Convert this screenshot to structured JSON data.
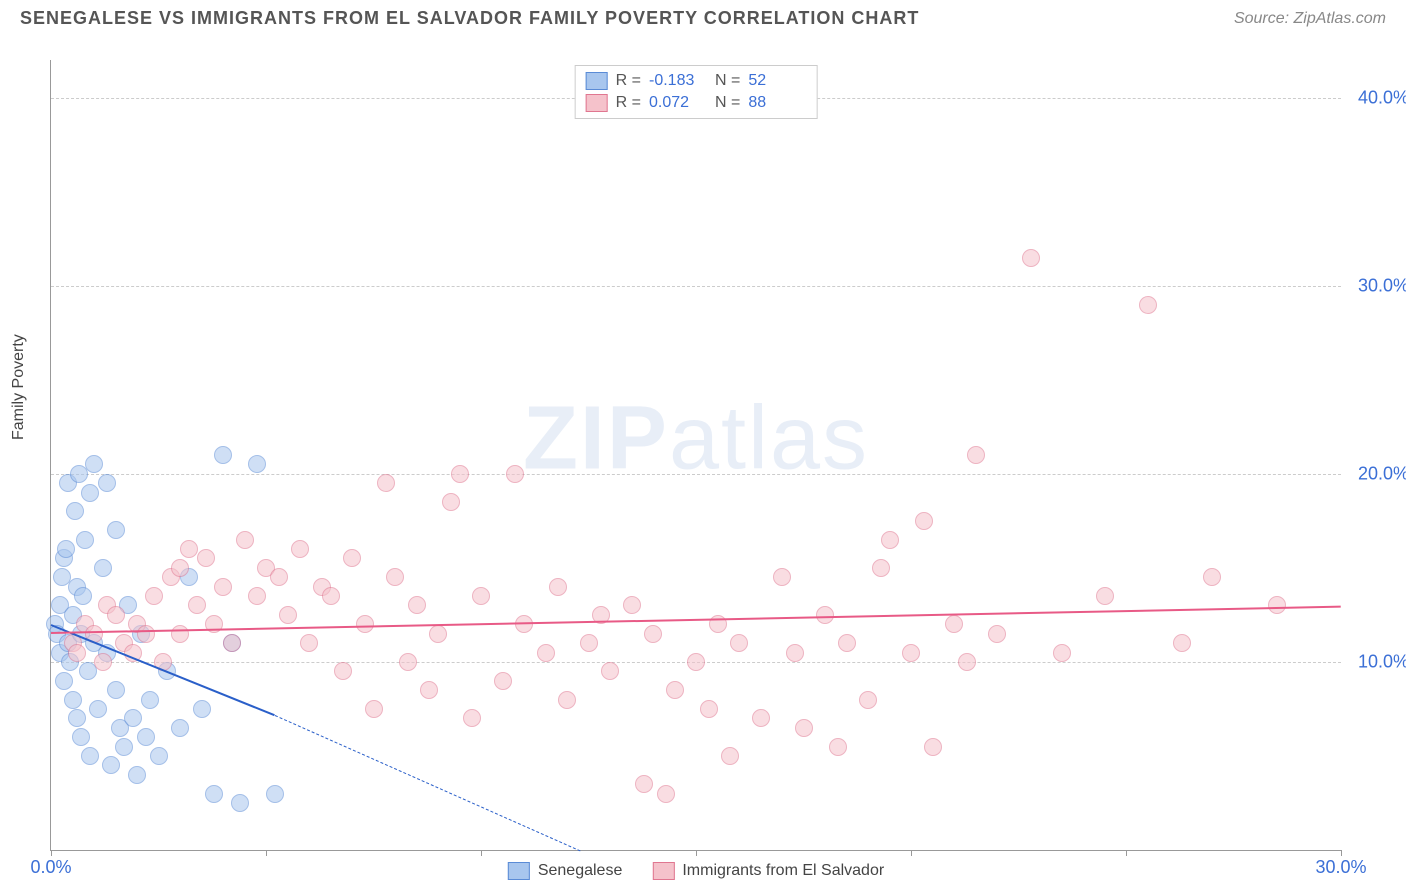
{
  "header": {
    "title": "SENEGALESE VS IMMIGRANTS FROM EL SALVADOR FAMILY POVERTY CORRELATION CHART",
    "source": "Source: ZipAtlas.com"
  },
  "watermark": {
    "bold": "ZIP",
    "light": "atlas"
  },
  "chart": {
    "type": "scatter",
    "ylabel": "Family Poverty",
    "xlim": [
      0,
      30
    ],
    "ylim": [
      0,
      42
    ],
    "xticks": [
      {
        "v": 0,
        "label": "0.0%"
      },
      {
        "v": 5,
        "label": ""
      },
      {
        "v": 10,
        "label": ""
      },
      {
        "v": 15,
        "label": ""
      },
      {
        "v": 20,
        "label": ""
      },
      {
        "v": 25,
        "label": ""
      },
      {
        "v": 30,
        "label": "30.0%"
      }
    ],
    "yticks": [
      {
        "v": 10,
        "label": "10.0%"
      },
      {
        "v": 20,
        "label": "20.0%"
      },
      {
        "v": 30,
        "label": "30.0%"
      },
      {
        "v": 40,
        "label": "40.0%"
      }
    ],
    "grid_color": "#cccccc",
    "background": "#ffffff",
    "point_radius": 8,
    "point_opacity": 0.55,
    "series": [
      {
        "key": "senegalese",
        "label": "Senegalese",
        "fill": "#a8c6ee",
        "stroke": "#5a8bd6",
        "R": "-0.183",
        "N": "52",
        "trend": {
          "x0": 0,
          "y0": 12.0,
          "x1": 5.2,
          "y1": 7.2,
          "color": "#2a5fc9",
          "width": 2,
          "dash_ext": {
            "x1": 12.3,
            "y1": 0
          }
        },
        "points": [
          [
            0.1,
            12.0
          ],
          [
            0.15,
            11.5
          ],
          [
            0.2,
            13.0
          ],
          [
            0.2,
            10.5
          ],
          [
            0.25,
            14.5
          ],
          [
            0.3,
            15.5
          ],
          [
            0.3,
            9.0
          ],
          [
            0.35,
            16.0
          ],
          [
            0.4,
            11.0
          ],
          [
            0.4,
            19.5
          ],
          [
            0.45,
            10.0
          ],
          [
            0.5,
            12.5
          ],
          [
            0.5,
            8.0
          ],
          [
            0.55,
            18.0
          ],
          [
            0.6,
            14.0
          ],
          [
            0.6,
            7.0
          ],
          [
            0.65,
            20.0
          ],
          [
            0.7,
            11.5
          ],
          [
            0.7,
            6.0
          ],
          [
            0.75,
            13.5
          ],
          [
            0.8,
            16.5
          ],
          [
            0.85,
            9.5
          ],
          [
            0.9,
            19.0
          ],
          [
            0.9,
            5.0
          ],
          [
            1.0,
            20.5
          ],
          [
            1.0,
            11.0
          ],
          [
            1.1,
            7.5
          ],
          [
            1.2,
            15.0
          ],
          [
            1.3,
            10.5
          ],
          [
            1.3,
            19.5
          ],
          [
            1.4,
            4.5
          ],
          [
            1.5,
            8.5
          ],
          [
            1.5,
            17.0
          ],
          [
            1.6,
            6.5
          ],
          [
            1.7,
            5.5
          ],
          [
            1.8,
            13.0
          ],
          [
            1.9,
            7.0
          ],
          [
            2.0,
            4.0
          ],
          [
            2.1,
            11.5
          ],
          [
            2.2,
            6.0
          ],
          [
            2.3,
            8.0
          ],
          [
            2.5,
            5.0
          ],
          [
            2.7,
            9.5
          ],
          [
            3.0,
            6.5
          ],
          [
            3.2,
            14.5
          ],
          [
            3.5,
            7.5
          ],
          [
            3.8,
            3.0
          ],
          [
            4.0,
            21.0
          ],
          [
            4.2,
            11.0
          ],
          [
            4.4,
            2.5
          ],
          [
            4.8,
            20.5
          ],
          [
            5.2,
            3.0
          ]
        ]
      },
      {
        "key": "el_salvador",
        "label": "Immigrants from El Salvador",
        "fill": "#f5c2cb",
        "stroke": "#e07690",
        "R": "0.072",
        "N": "88",
        "trend": {
          "x0": 0,
          "y0": 11.6,
          "x1": 30,
          "y1": 13.0,
          "color": "#e85a86",
          "width": 2
        },
        "points": [
          [
            0.5,
            11.0
          ],
          [
            0.6,
            10.5
          ],
          [
            0.8,
            12.0
          ],
          [
            1.0,
            11.5
          ],
          [
            1.2,
            10.0
          ],
          [
            1.3,
            13.0
          ],
          [
            1.5,
            12.5
          ],
          [
            1.7,
            11.0
          ],
          [
            1.9,
            10.5
          ],
          [
            2.0,
            12.0
          ],
          [
            2.2,
            11.5
          ],
          [
            2.4,
            13.5
          ],
          [
            2.6,
            10.0
          ],
          [
            2.8,
            14.5
          ],
          [
            3.0,
            15.0
          ],
          [
            3.0,
            11.5
          ],
          [
            3.2,
            16.0
          ],
          [
            3.4,
            13.0
          ],
          [
            3.6,
            15.5
          ],
          [
            3.8,
            12.0
          ],
          [
            4.0,
            14.0
          ],
          [
            4.2,
            11.0
          ],
          [
            4.5,
            16.5
          ],
          [
            4.8,
            13.5
          ],
          [
            5.0,
            15.0
          ],
          [
            5.3,
            14.5
          ],
          [
            5.5,
            12.5
          ],
          [
            5.8,
            16.0
          ],
          [
            6.0,
            11.0
          ],
          [
            6.3,
            14.0
          ],
          [
            6.5,
            13.5
          ],
          [
            6.8,
            9.5
          ],
          [
            7.0,
            15.5
          ],
          [
            7.3,
            12.0
          ],
          [
            7.5,
            7.5
          ],
          [
            7.8,
            19.5
          ],
          [
            8.0,
            14.5
          ],
          [
            8.3,
            10.0
          ],
          [
            8.5,
            13.0
          ],
          [
            8.8,
            8.5
          ],
          [
            9.0,
            11.5
          ],
          [
            9.3,
            18.5
          ],
          [
            9.5,
            20.0
          ],
          [
            9.8,
            7.0
          ],
          [
            10.0,
            13.5
          ],
          [
            10.5,
            9.0
          ],
          [
            10.8,
            20.0
          ],
          [
            11.0,
            12.0
          ],
          [
            11.5,
            10.5
          ],
          [
            11.8,
            14.0
          ],
          [
            12.0,
            8.0
          ],
          [
            12.5,
            11.0
          ],
          [
            12.8,
            12.5
          ],
          [
            13.0,
            9.5
          ],
          [
            13.5,
            13.0
          ],
          [
            13.8,
            3.5
          ],
          [
            14.0,
            11.5
          ],
          [
            14.3,
            3.0
          ],
          [
            14.5,
            8.5
          ],
          [
            15.0,
            10.0
          ],
          [
            15.3,
            7.5
          ],
          [
            15.5,
            12.0
          ],
          [
            15.8,
            5.0
          ],
          [
            16.0,
            11.0
          ],
          [
            16.5,
            7.0
          ],
          [
            17.0,
            14.5
          ],
          [
            17.3,
            10.5
          ],
          [
            17.5,
            6.5
          ],
          [
            18.0,
            12.5
          ],
          [
            18.3,
            5.5
          ],
          [
            18.5,
            11.0
          ],
          [
            19.0,
            8.0
          ],
          [
            19.3,
            15.0
          ],
          [
            19.5,
            16.5
          ],
          [
            20.0,
            10.5
          ],
          [
            20.3,
            17.5
          ],
          [
            20.5,
            5.5
          ],
          [
            21.0,
            12.0
          ],
          [
            21.3,
            10.0
          ],
          [
            21.5,
            21.0
          ],
          [
            22.0,
            11.5
          ],
          [
            22.8,
            31.5
          ],
          [
            23.5,
            10.5
          ],
          [
            24.5,
            13.5
          ],
          [
            25.5,
            29.0
          ],
          [
            26.3,
            11.0
          ],
          [
            27.0,
            14.5
          ],
          [
            28.5,
            13.0
          ]
        ]
      }
    ]
  }
}
